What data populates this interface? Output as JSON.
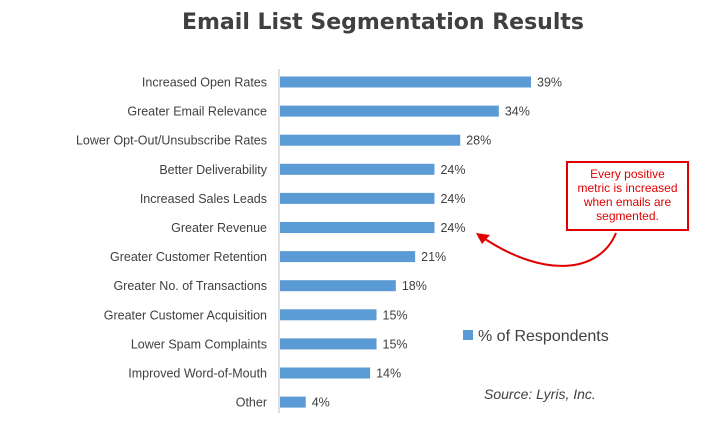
{
  "chart_data": {
    "type": "bar",
    "orientation": "horizontal",
    "title": "Email List Segmentation Results",
    "categories": [
      "Increased Open Rates",
      "Greater Email Relevance",
      "Lower Opt-Out/Unsubscribe Rates",
      "Better Deliverability",
      "Increased Sales Leads",
      "Greater Revenue",
      "Greater Customer Retention",
      "Greater No. of Transactions",
      "Greater Customer Acquisition",
      "Lower Spam Complaints",
      "Improved Word-of-Mouth",
      "Other"
    ],
    "series": [
      {
        "name": "% of Respondents",
        "values": [
          39,
          34,
          28,
          24,
          24,
          24,
          21,
          18,
          15,
          15,
          14,
          4
        ]
      }
    ],
    "value_labels": [
      "39%",
      "34%",
      "28%",
      "24%",
      "24%",
      "24%",
      "21%",
      "18%",
      "15%",
      "15%",
      "14%",
      "4%"
    ],
    "xlim": [
      0,
      39
    ],
    "grid": false,
    "legend": {
      "label": "% of Respondents",
      "position": "right"
    },
    "bar_color": "#5b9bd5",
    "source": "Source: Lyris, Inc."
  },
  "callout": {
    "lines": [
      "Every positive",
      "metric is increased",
      "when emails are",
      "segmented."
    ],
    "color": "#e00000"
  }
}
